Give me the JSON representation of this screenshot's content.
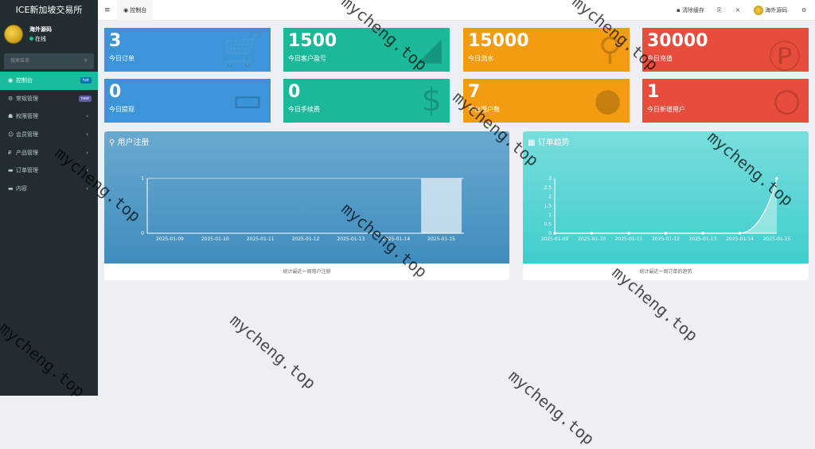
{
  "sidebar": {
    "brand": "ICE新加坡交易所",
    "user": "海外源码",
    "status": "在线",
    "search_placeholder": "搜索菜单",
    "items": [
      {
        "label": "控制台",
        "icon": "dashboard-icon",
        "badge": "hot",
        "badge_color": "#0073b7"
      },
      {
        "label": "常规管理",
        "icon": "cogs-icon",
        "badge": "new",
        "badge_color": "#605ca8"
      },
      {
        "label": "权限管理",
        "icon": "group-icon"
      },
      {
        "label": "会员管理",
        "icon": "user-circle-icon"
      },
      {
        "label": "产品管理",
        "icon": "product-icon"
      },
      {
        "label": "订单管理",
        "icon": "list-icon"
      },
      {
        "label": "内容",
        "icon": "list-icon"
      }
    ]
  },
  "header": {
    "tab": "控制台",
    "clear_cache": "清除缓存",
    "user": "海外源码"
  },
  "tiles": [
    {
      "value": "3",
      "label": "今日订单",
      "color": "#3c95d9",
      "icon": "cart-icon"
    },
    {
      "value": "1500",
      "label": "今日客户盈亏",
      "color": "#1bb99a",
      "icon": "area-chart-icon"
    },
    {
      "value": "15000",
      "label": "今日流水",
      "color": "#f39c12",
      "icon": "shower-icon"
    },
    {
      "value": "30000",
      "label": "今日充值",
      "color": "#e74c3c",
      "icon": "paypal-icon"
    },
    {
      "value": "0",
      "label": "今日提现",
      "color": "#3c95d9",
      "icon": "credit-card-icon"
    },
    {
      "value": "0",
      "label": "今日手续费",
      "color": "#1bb99a",
      "icon": "dollar-icon"
    },
    {
      "value": "7",
      "label": "平台用户数",
      "color": "#f39c12",
      "icon": "user-icon"
    },
    {
      "value": "1",
      "label": "今日新增用户",
      "color": "#e74c3c",
      "icon": "user-outline-icon"
    }
  ],
  "charts": {
    "register": {
      "title": "用户注册",
      "footer": "统计最近一周用户注册"
    },
    "orders": {
      "title": "订单趋势",
      "footer": "统计最近一周订单的趋势"
    }
  },
  "chart_data": [
    {
      "type": "bar",
      "categories": [
        "2025-01-09",
        "2025-01-10",
        "2025-01-11",
        "2025-01-12",
        "2025-01-13",
        "2025-01-14",
        "2025-01-15"
      ],
      "values": [
        0,
        0,
        0,
        0,
        0,
        0,
        1
      ],
      "ylim": [
        0,
        1
      ],
      "yticks": [
        "0",
        "1"
      ]
    },
    {
      "type": "area",
      "categories": [
        "2025-01-09",
        "2025-01-10",
        "2025-01-11",
        "2025-01-12",
        "2025-01-13",
        "2025-01-14",
        "2025-01-15"
      ],
      "values": [
        0,
        0,
        0,
        0,
        0,
        0,
        3
      ],
      "ylim": [
        0,
        3
      ],
      "yticks": [
        "0",
        "0.5",
        "1",
        "1.5",
        "2",
        "2.5",
        "3"
      ]
    }
  ],
  "watermark": "mycheng.top"
}
